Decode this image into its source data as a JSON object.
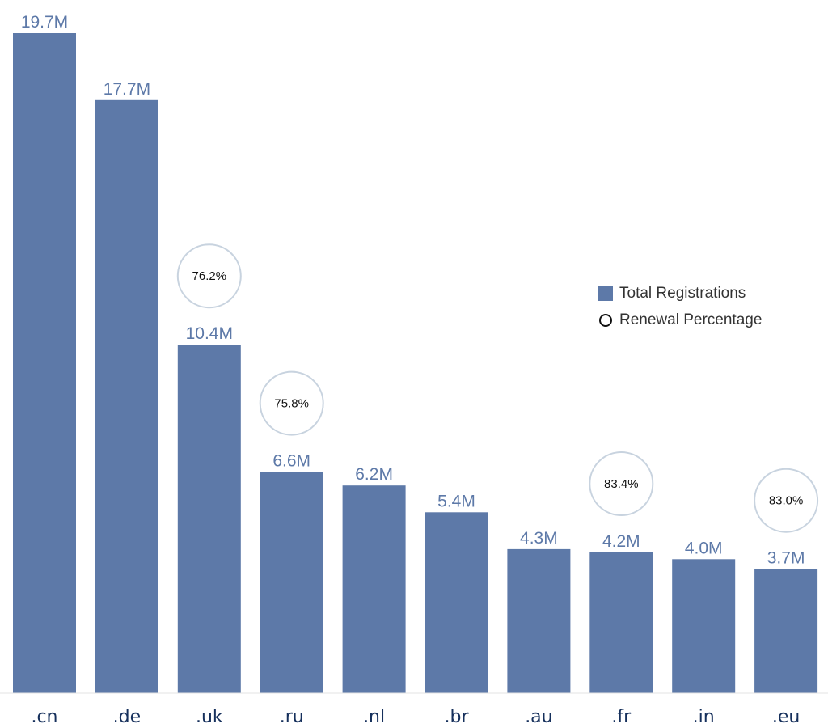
{
  "chart_data": {
    "type": "bar",
    "categories": [
      ".cn",
      ".de",
      ".uk",
      ".ru",
      ".nl",
      ".br",
      ".au",
      ".fr",
      ".in",
      ".eu"
    ],
    "series": [
      {
        "name": "Total Registrations",
        "values": [
          19.7,
          17.7,
          10.4,
          6.6,
          6.2,
          5.4,
          4.3,
          4.2,
          4.0,
          3.7
        ],
        "labels": [
          "19.7M",
          "17.7M",
          "10.4M",
          "6.6M",
          "6.2M",
          "5.4M",
          "4.3M",
          "4.2M",
          "4.0M",
          "3.7M"
        ],
        "unit": "M",
        "color": "#5d79a8"
      },
      {
        "name": "Renewal Percentage",
        "points": [
          {
            "category": ".uk",
            "value": 76.2,
            "label": "76.2%"
          },
          {
            "category": ".ru",
            "value": 75.8,
            "label": "75.8%"
          },
          {
            "category": ".fr",
            "value": 83.4,
            "label": "83.4%"
          },
          {
            "category": ".eu",
            "value": 83.0,
            "label": "83.0%"
          }
        ],
        "marker": "circle",
        "marker_color": "#c8d3df"
      }
    ],
    "ylim": [
      0,
      19.7
    ],
    "grid": false,
    "legend_position": "right"
  },
  "legend": {
    "items": [
      {
        "label": "Total Registrations",
        "marker": "square",
        "color": "#5d79a8"
      },
      {
        "label": "Renewal Percentage",
        "marker": "circle",
        "color": "#111111"
      }
    ]
  }
}
